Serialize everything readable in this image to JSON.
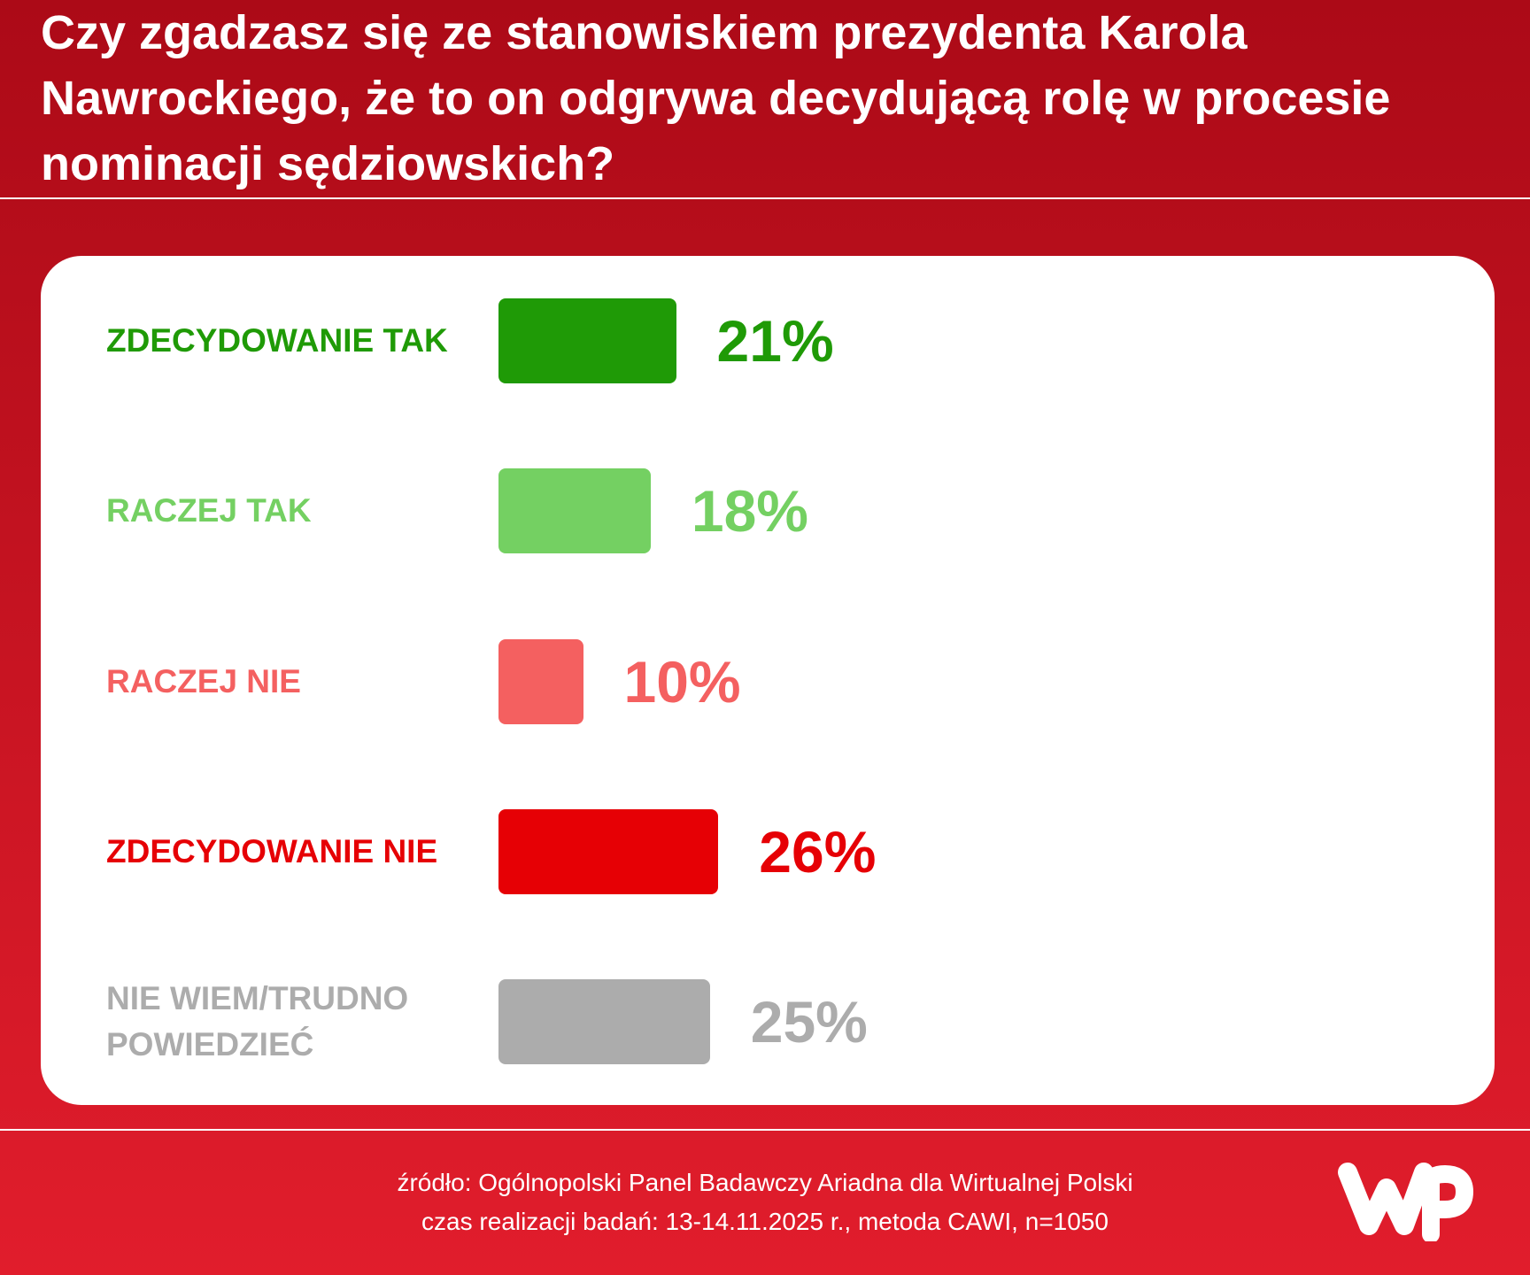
{
  "chart_data": {
    "type": "bar",
    "title": "Czy zgadzasz się ze stanowiskiem prezydenta Karola Nawrockiego, że to on odgrywa decydującą rolę w procesie nominacji sędziowskich?",
    "categories": [
      "ZDECYDOWANIE TAK",
      "RACZEJ TAK",
      "RACZEJ NIE",
      "ZDECYDOWANIE NIE",
      "NIE WIEM/TRUDNO POWIEDZIEĆ"
    ],
    "values": [
      21,
      18,
      10,
      26,
      25
    ],
    "value_labels": [
      "21%",
      "18%",
      "10%",
      "26%",
      "25%"
    ],
    "colors": [
      "#1f9a06",
      "#74d062",
      "#f46060",
      "#e60005",
      "#acacac"
    ],
    "source": [
      "źródło: Ogólnopolski Panel Badawczy Ariadna dla Wirtualnej Polski",
      "czas realizacji badań: 13-14.11.2025 r., metoda CAWI, n=1050"
    ]
  }
}
